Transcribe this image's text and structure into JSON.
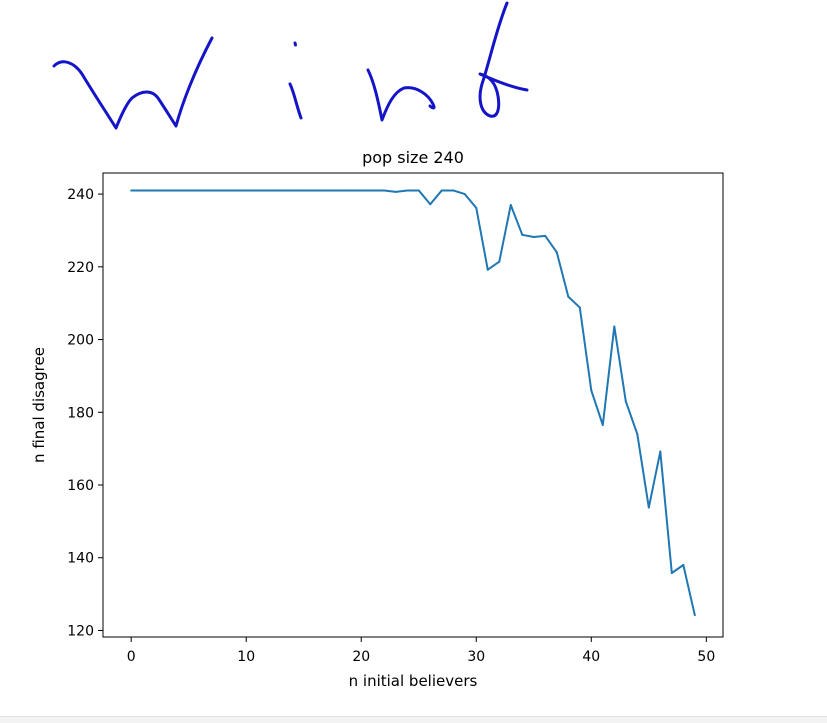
{
  "handwriting": {
    "text": "Wind",
    "ink_color": "#1414c8"
  },
  "chart_data": {
    "type": "line",
    "title": "pop size 240",
    "xlabel": "n initial believers",
    "ylabel": "n final disagree",
    "xlim": [
      -2.45,
      51.45
    ],
    "ylim": [
      118.2,
      245.8
    ],
    "xticks": [
      0,
      10,
      20,
      30,
      40,
      50
    ],
    "yticks": [
      120,
      140,
      160,
      180,
      200,
      220,
      240
    ],
    "grid": false,
    "line_color": "#1f77b4",
    "series": [
      {
        "x": [
          0,
          1,
          2,
          3,
          4,
          5,
          6,
          7,
          8,
          9,
          10,
          11,
          12,
          13,
          14,
          15,
          16,
          17,
          18,
          19,
          20,
          21,
          22,
          23,
          24,
          25,
          26,
          27,
          28,
          29,
          30,
          31,
          32,
          33,
          34,
          35,
          36,
          37,
          38,
          39,
          40,
          41,
          42,
          43,
          44,
          45,
          46,
          47,
          48,
          49
        ],
        "values": [
          241,
          241,
          241,
          241,
          241,
          241,
          241,
          241,
          241,
          241,
          241,
          241,
          241,
          241,
          241,
          241,
          241,
          241,
          241,
          241,
          241,
          241,
          241,
          240.6,
          241,
          241,
          237.2,
          241,
          241,
          240,
          236.2,
          219.2,
          221.4,
          237,
          228.8,
          228.2,
          228.5,
          224,
          211.8,
          208.8,
          186,
          176.5,
          203.6,
          183,
          174,
          153.8,
          169.2,
          135.8,
          138,
          124.2
        ]
      }
    ]
  }
}
